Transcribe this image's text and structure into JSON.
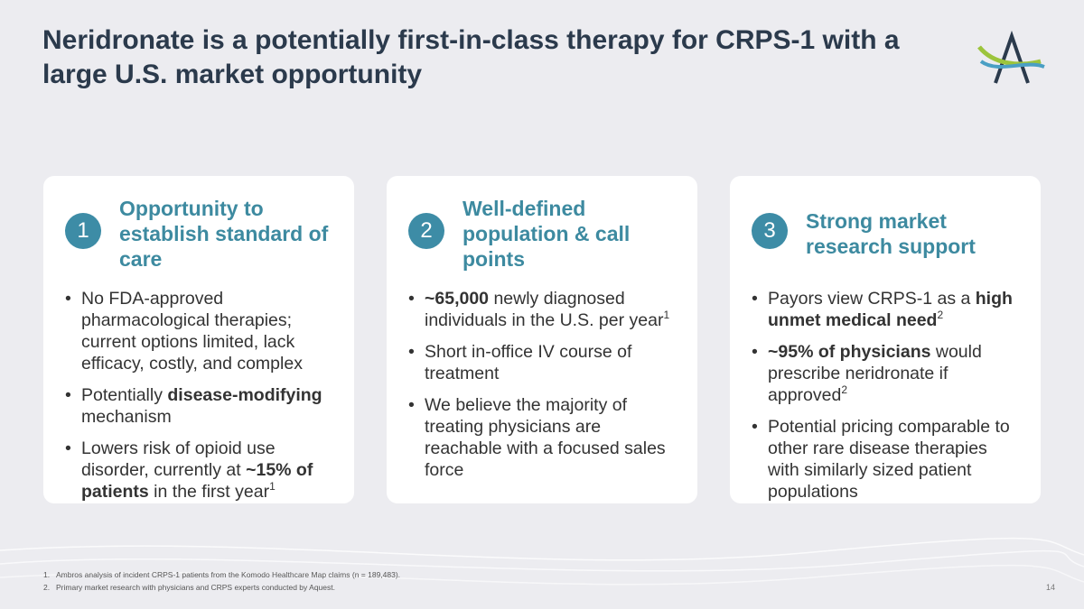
{
  "header": {
    "title": "Neridronate is a potentially first-in-class therapy for CRPS-1 with a large U.S. market opportunity"
  },
  "cards": [
    {
      "number": "1",
      "heading": "Opportunity to establish standard of care",
      "bullets": [
        [
          {
            "text": "No FDA-approved pharmacological therapies; current options limited, lack efficacy, costly, and complex",
            "style": "normal"
          }
        ],
        [
          {
            "text": "Potentially ",
            "style": "normal"
          },
          {
            "text": "disease-modifying",
            "style": "bold"
          },
          {
            "text": " mechanism",
            "style": "normal"
          }
        ],
        [
          {
            "text": "Lowers risk of opioid use disorder, currently at ",
            "style": "normal"
          },
          {
            "text": "~15% of patients",
            "style": "bold"
          },
          {
            "text": " in the first year",
            "style": "normal"
          },
          {
            "text": "1",
            "style": "sup"
          }
        ]
      ]
    },
    {
      "number": "2",
      "heading": "Well-defined population & call points",
      "bullets": [
        [
          {
            "text": "~65,000",
            "style": "bold"
          },
          {
            "text": " newly diagnosed individuals in the U.S. per year",
            "style": "normal"
          },
          {
            "text": "1",
            "style": "sup"
          }
        ],
        [
          {
            "text": "Short in-office IV course of treatment",
            "style": "normal"
          }
        ],
        [
          {
            "text": "We believe the majority of treating physicians are reachable with a focused sales force",
            "style": "normal"
          }
        ]
      ]
    },
    {
      "number": "3",
      "heading": "Strong market research support",
      "bullets": [
        [
          {
            "text": "Payors view CRPS-1 as a ",
            "style": "normal"
          },
          {
            "text": "high unmet medical need",
            "style": "bold"
          },
          {
            "text": "2",
            "style": "sup"
          }
        ],
        [
          {
            "text": "~95% of physicians",
            "style": "bold"
          },
          {
            "text": " would prescribe neridronate if approved",
            "style": "normal"
          },
          {
            "text": "2",
            "style": "sup"
          }
        ],
        [
          {
            "text": "Potential pricing comparable to other rare disease therapies with similarly sized patient populations",
            "style": "normal"
          }
        ]
      ]
    }
  ],
  "footnotes": [
    {
      "number": "1.",
      "text": "Ambros analysis of incident CRPS-1 patients from the Komodo Healthcare Map claims (n = 189,483)."
    },
    {
      "number": "2.",
      "text": "Primary market research with physicians and CRPS experts conducted by Aquest."
    }
  ],
  "page_number": 14
}
